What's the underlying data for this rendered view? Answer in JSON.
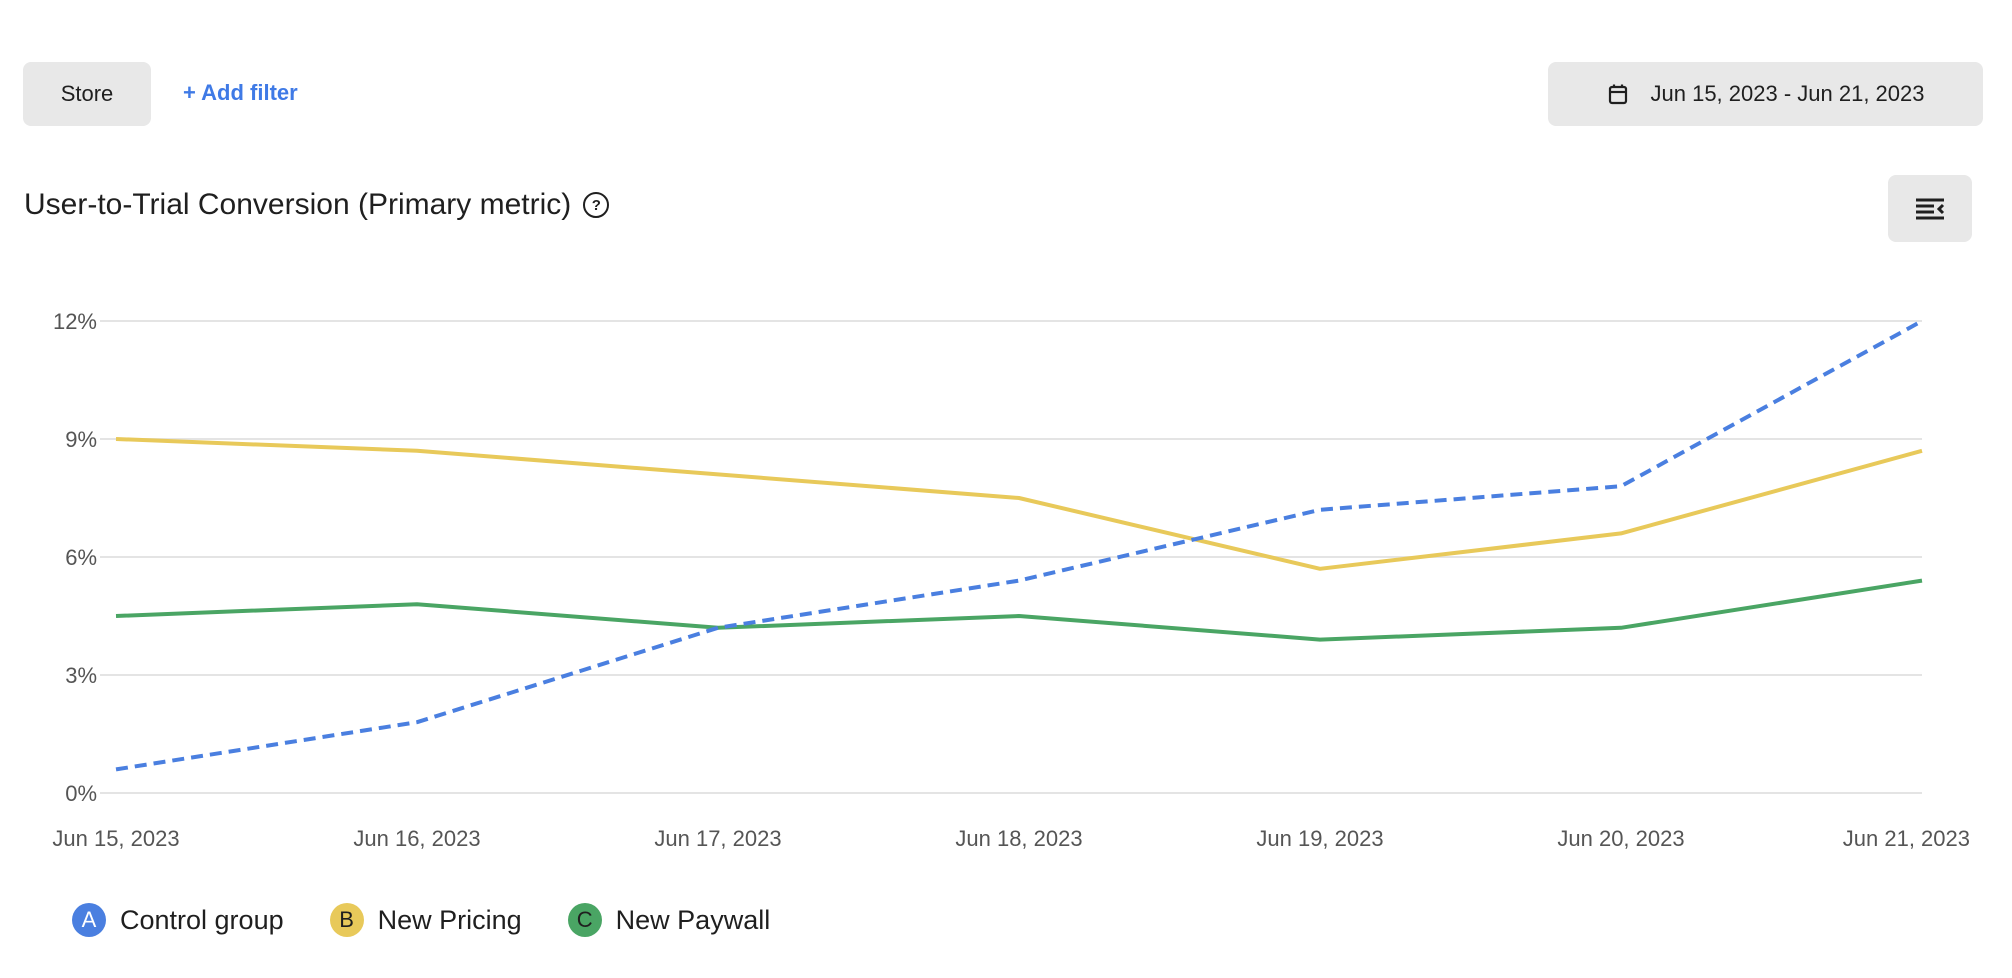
{
  "filters": {
    "store_label": "Store",
    "add_filter_label": "+ Add filter"
  },
  "date_range": {
    "label": "Jun 15, 2023 - Jun 21, 2023",
    "icon": "calendar-icon"
  },
  "header": {
    "title": "User-to-Trial Conversion (Primary metric)",
    "help_icon": "?"
  },
  "chart_data": {
    "type": "line",
    "title": "User-to-Trial Conversion (Primary metric)",
    "categories": [
      "Jun 15, 2023",
      "Jun 16, 2023",
      "Jun 17, 2023",
      "Jun 18, 2023",
      "Jun 19, 2023",
      "Jun 20, 2023",
      "Jun 21, 2023"
    ],
    "yticks": [
      0,
      3,
      6,
      9,
      12
    ],
    "ytick_labels": [
      "0%",
      "3%",
      "6%",
      "9%",
      "12%"
    ],
    "ylim": [
      0,
      12
    ],
    "grid": true,
    "legend_placement": "bottom-left",
    "series": [
      {
        "name": "Control group",
        "badge": "A",
        "color": "#4a7fe0",
        "dashed": true,
        "values": [
          0.6,
          1.8,
          4.2,
          5.4,
          7.2,
          7.8,
          12.0
        ]
      },
      {
        "name": "New Pricing",
        "badge": "B",
        "color": "#e8c95a",
        "dashed": false,
        "values": [
          9.0,
          8.7,
          8.1,
          7.5,
          5.7,
          6.6,
          8.7
        ]
      },
      {
        "name": "New Paywall",
        "badge": "C",
        "color": "#4aa564",
        "dashed": false,
        "values": [
          4.5,
          4.8,
          4.2,
          4.5,
          3.9,
          4.2,
          5.4
        ]
      }
    ]
  }
}
